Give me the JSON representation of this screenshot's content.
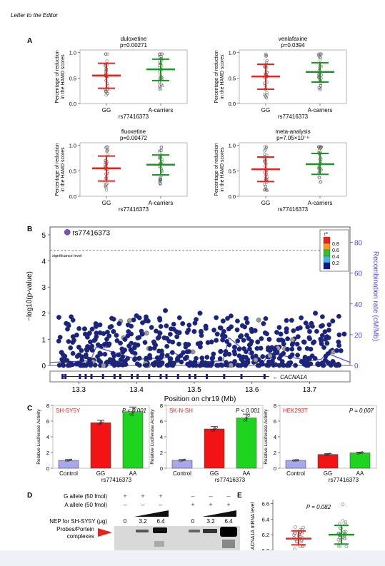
{
  "header": {
    "running_title": "Letter to the Editor"
  },
  "panel_labels": {
    "a": "A",
    "b": "B",
    "c": "C",
    "d": "D",
    "e": "E"
  },
  "panel_a": {
    "snp": "rs77416373",
    "ylabel_line1": "Percentage of reduction",
    "ylabel_line2": "in the HAMD scores",
    "groups": [
      "GG",
      "A-carriers"
    ],
    "yticks": [
      "0.0",
      "0.5",
      "1.0"
    ],
    "colors": {
      "GG": "#e8221c",
      "A-carriers": "#169a1e"
    }
  },
  "panel_b": {
    "snp_label": "rs77416373",
    "significance_label": "significance level",
    "ylabel": "−log10(p-value)",
    "ylabel_right": "Recombination rate (cM/Mb)",
    "xlabel": "Position on chr19 (Mb)",
    "gene": "CACNA1A",
    "xticks": [
      "13.3",
      "13.4",
      "13.5",
      "13.6",
      "13.7"
    ],
    "yticks": [
      "0",
      "1",
      "2",
      "3",
      "4",
      "5"
    ],
    "yticks_right": [
      "0",
      "20",
      "40",
      "60",
      "80"
    ],
    "legend": {
      "title": "r²",
      "levels": [
        "0.8",
        "0.6",
        "0.4",
        "0.2"
      ],
      "colors": [
        "#e8221c",
        "#f59a1b",
        "#2fbf2f",
        "#3db8e8",
        "#0a1a8a"
      ]
    },
    "lead_color": "#7b4fc4",
    "point_color": "#17238a",
    "recomb_color": "#4b4be8"
  },
  "panel_c": {
    "ylabel": "Relative Luciferase Activity",
    "xlabels": [
      "Control",
      "GG",
      "AA"
    ],
    "snp": "rs77416373",
    "yticks": [
      "0",
      "2",
      "4",
      "6",
      "8"
    ],
    "colors": [
      "#a7a7ee",
      "#f21414",
      "#1fd41f"
    ]
  },
  "panel_d": {
    "row_g": "G allele (50 fmol)",
    "row_a": "A allele (50 fmol)",
    "row_nep": "NEP for SH-SY5Y (μg)",
    "g_marks": [
      "+",
      "+",
      "+",
      "–",
      "–",
      "–"
    ],
    "a_marks": [
      "–",
      "–",
      "–",
      "+",
      "+",
      "+"
    ],
    "doses": [
      "0",
      "3.2",
      "6.4",
      "0",
      "3.2",
      "6.4"
    ],
    "complex_label_line1": "Probes/Portein",
    "complex_label_line2": "complexes"
  },
  "panel_e": {
    "ylabel": "CACNA1A mRNA level",
    "yticks": [
      "6.0",
      "6.2",
      "6.4",
      "6.6"
    ],
    "p_label": "P = 0.082"
  },
  "chart_data": [
    {
      "type": "scatter",
      "title": "duloxetine",
      "subtitle": "p=0.00271",
      "categories": [
        "GG",
        "A-carriers"
      ],
      "xlabel": "rs77416373",
      "ylabel": "Percentage of reduction in the HAMD scores",
      "ylim": [
        0,
        1.05
      ],
      "mean": [
        0.55,
        0.67
      ],
      "sd_low": [
        0.3,
        0.45
      ],
      "sd_high": [
        0.79,
        0.87
      ]
    },
    {
      "type": "scatter",
      "title": "venlafaxine",
      "subtitle": "p=0.0394",
      "categories": [
        "GG",
        "A-carriers"
      ],
      "xlabel": "rs77416373",
      "ylabel": "Percentage of reduction in the HAMD scores",
      "ylim": [
        0,
        1.05
      ],
      "mean": [
        0.53,
        0.62
      ],
      "sd_low": [
        0.28,
        0.42
      ],
      "sd_high": [
        0.77,
        0.8
      ]
    },
    {
      "type": "scatter",
      "title": "fluoxetine",
      "subtitle": "p=0.00472",
      "categories": [
        "GG",
        "A-carriers"
      ],
      "xlabel": "rs77416373",
      "ylabel": "Percentage of reduction in the HAMD scores",
      "ylim": [
        0,
        1.05
      ],
      "mean": [
        0.55,
        0.62
      ],
      "sd_low": [
        0.3,
        0.42
      ],
      "sd_high": [
        0.79,
        0.81
      ]
    },
    {
      "type": "scatter",
      "title": "meta-analysis",
      "subtitle": "p=7.05×10⁻⁶",
      "categories": [
        "GG",
        "A-carriers"
      ],
      "xlabel": "rs77416373",
      "ylabel": "Percentage of reduction in the HAMD scores",
      "ylim": [
        0,
        1.05
      ],
      "mean": [
        0.53,
        0.63
      ],
      "sd_low": [
        0.29,
        0.43
      ],
      "sd_high": [
        0.77,
        0.84
      ]
    },
    {
      "type": "scatter",
      "title": "",
      "xlabel": "Position on chr19 (Mb)",
      "ylabel": "−log10(p-value)",
      "xlim": [
        13.25,
        13.77
      ],
      "ylim": [
        0,
        5.3
      ],
      "significance_line": 4.4,
      "lead_snp": {
        "name": "rs77416373",
        "x": 13.28,
        "y": 5.1
      },
      "x": [
        13.27,
        13.29,
        13.3,
        13.31,
        13.32,
        13.33,
        13.35,
        13.36,
        13.37,
        13.38,
        13.39,
        13.4,
        13.41,
        13.42,
        13.43,
        13.44,
        13.45,
        13.46,
        13.47,
        13.48,
        13.49,
        13.5,
        13.51,
        13.52,
        13.53,
        13.54,
        13.55,
        13.56,
        13.57,
        13.58,
        13.59,
        13.6,
        13.61,
        13.62,
        13.63,
        13.64,
        13.65,
        13.66,
        13.67,
        13.68,
        13.69,
        13.7,
        13.71,
        13.72,
        13.73,
        13.74,
        13.75,
        13.76
      ],
      "y": [
        0.5,
        1.1,
        0.7,
        1.4,
        0.9,
        1.5,
        0.8,
        1.3,
        1.6,
        1.0,
        0.6,
        1.9,
        1.2,
        1.7,
        0.9,
        1.8,
        2.1,
        1.4,
        1.1,
        1.6,
        0.8,
        1.3,
        2.0,
        1.5,
        0.9,
        1.2,
        1.7,
        1.4,
        0.7,
        1.1,
        1.8,
        1.3,
        0.9,
        1.6,
        1.0,
        0.6,
        1.2,
        1.4,
        0.8,
        1.1,
        0.9,
        1.3,
        2.0,
        1.5,
        1.1,
        1.7,
        0.9,
        1.2
      ],
      "recombination_x": [
        13.25,
        13.32,
        13.33,
        13.4,
        13.45,
        13.46,
        13.5,
        13.55,
        13.56,
        13.6,
        13.62,
        13.63,
        13.7,
        13.72,
        13.73,
        13.77
      ],
      "recombination_y": [
        2,
        3,
        12,
        4,
        5,
        9,
        2,
        3,
        18,
        6,
        2,
        8,
        3,
        4,
        8,
        2
      ]
    },
    {
      "type": "bar",
      "title": "SH-SY5Y",
      "subtitle": "P < 0.001",
      "categories": [
        "Control",
        "GG",
        "AA"
      ],
      "values": [
        1.0,
        5.8,
        7.2
      ],
      "errors": [
        0.1,
        0.3,
        0.6
      ],
      "ylabel": "Relative Luciferase Activity",
      "xlabel": "rs77416373",
      "ylim": [
        0,
        8
      ]
    },
    {
      "type": "bar",
      "title": "SK-N-SH",
      "subtitle": "P < 0.001",
      "categories": [
        "Control",
        "GG",
        "AA"
      ],
      "values": [
        1.0,
        5.0,
        6.4
      ],
      "errors": [
        0.1,
        0.3,
        0.5
      ],
      "ylabel": "Relative Luciferase Activity",
      "xlabel": "rs77416373",
      "ylim": [
        0,
        8
      ]
    },
    {
      "type": "bar",
      "title": "HEK293T",
      "subtitle": "P = 0.007",
      "categories": [
        "Control",
        "GG",
        "AA"
      ],
      "values": [
        1.0,
        1.75,
        1.95
      ],
      "errors": [
        0.05,
        0.1,
        0.1
      ],
      "ylabel": "Relative Luciferase Activity",
      "xlabel": "rs77416373",
      "ylim": [
        0,
        8
      ]
    },
    {
      "type": "scatter",
      "title": "",
      "subtitle": "P = 0.082",
      "categories": [
        "",
        ""
      ],
      "ylabel": "CACNA1A mRNA level",
      "ylim": [
        6.0,
        6.65
      ],
      "mean": [
        6.15,
        6.2
      ],
      "sd_low": [
        6.07,
        6.08
      ],
      "sd_high": [
        6.25,
        6.32
      ]
    }
  ]
}
